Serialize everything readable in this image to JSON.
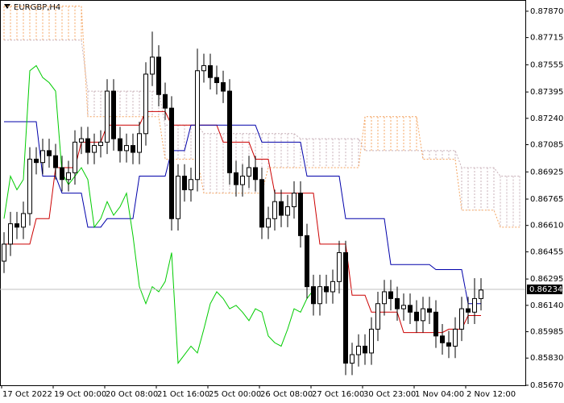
{
  "chart_data": {
    "type": "candlestick",
    "title": "EURGBP,H4",
    "categories": [
      "17 Oct 2022",
      null,
      null,
      null,
      null,
      null,
      null,
      null,
      "19 Oct 00:00",
      null,
      null,
      null,
      null,
      null,
      null,
      null,
      "20 Oct 08:00",
      null,
      null,
      null,
      null,
      null,
      null,
      null,
      "21 Oct 16:00",
      null,
      null,
      null,
      null,
      null,
      null,
      null,
      "25 Oct 00:00",
      null,
      null,
      null,
      null,
      null,
      null,
      null,
      "26 Oct 08:00",
      null,
      null,
      null,
      null,
      null,
      null,
      null,
      "27 Oct 16:00",
      null,
      null,
      null,
      null,
      null,
      null,
      null,
      "30 Oct 23:00",
      null,
      null,
      null,
      null,
      null,
      null,
      null,
      "1 Nov 04:00",
      null,
      null,
      null,
      null,
      null,
      null,
      null,
      "2 Nov 12:00",
      null,
      null,
      null,
      null,
      null,
      null,
      null,
      null
    ],
    "open": [
      0.864,
      0.865,
      0.8662,
      0.866,
      0.8668,
      0.87,
      0.8698,
      0.8705,
      0.8702,
      0.8695,
      0.8688,
      0.8692,
      0.871,
      0.8712,
      0.8704,
      0.8708,
      0.871,
      0.874,
      0.8712,
      0.8705,
      0.8708,
      0.8704,
      0.8715,
      0.875,
      0.876,
      0.8738,
      0.873,
      0.8665,
      0.869,
      0.8682,
      0.8688,
      0.8752,
      0.8755,
      0.8748,
      0.8745,
      0.874,
      0.8692,
      0.8685,
      0.869,
      0.8695,
      0.8688,
      0.866,
      0.8665,
      0.8675,
      0.8667,
      0.8672,
      0.868,
      0.8655,
      0.8625,
      0.8615,
      0.8625,
      0.8622,
      0.8628,
      0.8645,
      0.858,
      0.8585,
      0.859,
      0.8586,
      0.86,
      0.8615,
      0.8622,
      0.8618,
      0.8612,
      0.8614,
      0.861,
      0.8605,
      0.8612,
      0.861,
      0.8596,
      0.8592,
      0.859,
      0.86,
      0.8612,
      0.861,
      0.8618,
      null,
      null,
      null,
      null,
      null,
      null
    ],
    "high": [
      0.8657,
      0.8669,
      0.8669,
      0.8675,
      0.8707,
      0.8707,
      0.8712,
      0.8712,
      0.8709,
      0.8702,
      0.8699,
      0.8717,
      0.8719,
      0.8719,
      0.8715,
      0.8717,
      0.8747,
      0.8747,
      0.8719,
      0.8715,
      0.8715,
      0.8722,
      0.8757,
      0.8775,
      0.8767,
      0.8745,
      0.8737,
      0.8697,
      0.8697,
      0.8695,
      0.8765,
      0.8762,
      0.8762,
      0.8755,
      0.8752,
      0.8747,
      0.8699,
      0.8697,
      0.8702,
      0.8702,
      0.8695,
      0.8672,
      0.8682,
      0.8682,
      0.8679,
      0.8687,
      0.8687,
      0.8662,
      0.8632,
      0.8632,
      0.8632,
      0.8635,
      0.8652,
      0.8652,
      0.8592,
      0.8597,
      0.8597,
      0.8607,
      0.8622,
      0.8629,
      0.8629,
      0.8625,
      0.8621,
      0.8621,
      0.8617,
      0.8619,
      0.8619,
      0.8617,
      0.8603,
      0.8599,
      0.8607,
      0.8619,
      0.8619,
      0.863,
      0.863,
      null,
      null,
      null,
      null,
      null,
      null
    ],
    "low": [
      0.8633,
      0.8643,
      0.8653,
      0.8653,
      0.8661,
      0.8691,
      0.8691,
      0.8695,
      0.8688,
      0.8681,
      0.8681,
      0.8685,
      0.8703,
      0.8697,
      0.8697,
      0.8701,
      0.8703,
      0.8705,
      0.8698,
      0.8698,
      0.8697,
      0.8697,
      0.8708,
      0.8743,
      0.8731,
      0.8723,
      0.8658,
      0.8658,
      0.8675,
      0.8675,
      0.8681,
      0.8745,
      0.8741,
      0.8738,
      0.8733,
      0.8685,
      0.8678,
      0.8678,
      0.8683,
      0.8681,
      0.8653,
      0.8653,
      0.8658,
      0.866,
      0.866,
      0.8665,
      0.8648,
      0.8618,
      0.8608,
      0.8608,
      0.8615,
      0.8615,
      0.8621,
      0.8573,
      0.8573,
      0.8578,
      0.8579,
      0.8579,
      0.8593,
      0.8608,
      0.8611,
      0.8605,
      0.8605,
      0.8603,
      0.8598,
      0.8598,
      0.8603,
      0.8589,
      0.8585,
      0.8583,
      0.8583,
      0.8593,
      0.8603,
      0.8603,
      0.8611,
      null,
      null,
      null,
      null,
      null,
      null
    ],
    "close": [
      0.865,
      0.8662,
      0.866,
      0.8668,
      0.87,
      0.8698,
      0.8705,
      0.8702,
      0.8695,
      0.8688,
      0.8692,
      0.871,
      0.8712,
      0.8704,
      0.8708,
      0.871,
      0.874,
      0.8712,
      0.8705,
      0.8708,
      0.8704,
      0.8715,
      0.875,
      0.876,
      0.8738,
      0.873,
      0.8665,
      0.869,
      0.8682,
      0.8688,
      0.8752,
      0.8755,
      0.8748,
      0.8745,
      0.874,
      0.8692,
      0.8685,
      0.869,
      0.8695,
      0.8688,
      0.866,
      0.8665,
      0.8675,
      0.8667,
      0.8672,
      0.868,
      0.8655,
      0.8625,
      0.8615,
      0.8625,
      0.8622,
      0.8628,
      0.8645,
      0.858,
      0.8585,
      0.859,
      0.8586,
      0.86,
      0.8615,
      0.8622,
      0.8618,
      0.8612,
      0.8614,
      0.861,
      0.8605,
      0.8612,
      0.861,
      0.8596,
      0.8592,
      0.859,
      0.86,
      0.8612,
      0.861,
      0.8618,
      0.8623,
      null,
      null,
      null,
      null,
      null,
      null
    ],
    "up_color": "#ffffff",
    "down_color": "#000000",
    "lines": [
      {
        "color": "#cc0000",
        "values": [
          0.865,
          0.865,
          0.865,
          0.865,
          0.865,
          0.8665,
          0.8665,
          0.8665,
          0.8695,
          0.8695,
          0.8695,
          0.8695,
          0.871,
          0.871,
          0.871,
          0.871,
          0.872,
          0.872,
          0.872,
          0.872,
          0.872,
          0.872,
          0.8728,
          0.8728,
          0.8728,
          0.8728,
          0.872,
          0.872,
          0.872,
          0.872,
          0.872,
          0.872,
          0.872,
          0.872,
          0.871,
          0.871,
          0.871,
          0.871,
          0.871,
          0.87,
          0.87,
          0.87,
          0.868,
          0.868,
          0.868,
          0.868,
          0.868,
          0.868,
          0.868,
          0.865,
          0.865,
          0.865,
          0.865,
          0.865,
          0.862,
          0.862,
          0.862,
          0.861,
          0.861,
          0.861,
          0.861,
          0.861,
          0.8598,
          0.8598,
          0.8598,
          0.8598,
          0.8598,
          0.8598,
          0.8598,
          0.86,
          0.86,
          0.86,
          0.8608,
          0.8608,
          0.8608,
          null,
          null,
          null,
          null,
          null,
          null
        ]
      },
      {
        "color": "#0000aa",
        "values": [
          0.8722,
          0.8722,
          0.8722,
          0.8722,
          0.8722,
          0.8722,
          0.869,
          0.869,
          0.869,
          0.868,
          0.868,
          0.868,
          0.868,
          0.866,
          0.866,
          0.866,
          0.8665,
          0.8665,
          0.8665,
          0.8665,
          0.8665,
          0.869,
          0.869,
          0.869,
          0.869,
          0.869,
          0.8705,
          0.8705,
          0.8705,
          0.872,
          0.872,
          0.872,
          0.872,
          0.872,
          0.872,
          0.872,
          0.872,
          0.872,
          0.872,
          0.872,
          0.871,
          0.871,
          0.871,
          0.871,
          0.871,
          0.871,
          0.871,
          0.869,
          0.869,
          0.869,
          0.869,
          0.869,
          0.869,
          0.8665,
          0.8665,
          0.8665,
          0.8665,
          0.8665,
          0.8665,
          0.8665,
          0.8638,
          0.8638,
          0.8638,
          0.8638,
          0.8638,
          0.8638,
          0.8638,
          0.8635,
          0.8635,
          0.8635,
          0.8635,
          0.8635,
          0.8615,
          0.8615,
          0.8615,
          null,
          null,
          null,
          null,
          null,
          null
        ]
      },
      {
        "color": "#00cc00",
        "values": [
          0.8665,
          0.869,
          0.8682,
          0.8688,
          0.8752,
          0.8755,
          0.8748,
          0.8745,
          0.874,
          0.8692,
          0.8685,
          0.869,
          0.8695,
          0.8688,
          0.866,
          0.8665,
          0.8675,
          0.8667,
          0.8672,
          0.868,
          0.8655,
          0.8625,
          0.8615,
          0.8625,
          0.8622,
          0.8628,
          0.8645,
          0.858,
          0.8585,
          0.859,
          0.8586,
          0.86,
          0.8615,
          0.8622,
          0.8618,
          0.8612,
          0.8614,
          0.861,
          0.8605,
          0.8612,
          0.861,
          0.8596,
          0.8592,
          0.859,
          0.86,
          0.8612,
          0.861,
          0.8618,
          0.8623,
          null,
          null,
          null,
          null,
          null,
          null,
          null,
          null,
          null,
          null,
          null,
          null,
          null,
          null,
          null,
          null,
          null,
          null,
          null,
          null,
          null,
          null,
          null,
          null,
          null,
          null,
          null,
          null,
          null,
          null,
          null,
          null
        ]
      }
    ],
    "cloud": [
      {
        "color": "#c8b0b8",
        "values": [
          0.877,
          0.877,
          0.877,
          0.877,
          0.877,
          0.877,
          0.877,
          0.877,
          0.877,
          0.877,
          0.877,
          0.877,
          0.877,
          0.874,
          0.874,
          0.874,
          0.874,
          0.874,
          0.874,
          0.874,
          0.874,
          0.874,
          0.874,
          0.874,
          0.874,
          0.872,
          0.872,
          0.872,
          0.872,
          0.872,
          0.872,
          0.8715,
          0.8715,
          0.8715,
          0.8715,
          0.8715,
          0.8715,
          0.8715,
          0.8715,
          0.8715,
          0.8715,
          0.8715,
          0.8715,
          0.8715,
          0.8715,
          0.8715,
          0.8712,
          0.8712,
          0.8712,
          0.8712,
          0.8712,
          0.8712,
          0.8712,
          0.8712,
          0.8712,
          0.8712,
          0.8705,
          0.8705,
          0.8705,
          0.8705,
          0.8705,
          0.8705,
          0.8705,
          0.8705,
          0.8705,
          0.8705,
          0.8705,
          0.8705,
          0.8705,
          0.8705,
          0.8705,
          0.8695,
          0.8695,
          0.8695,
          0.8695,
          0.8695,
          0.8695,
          0.869,
          0.869,
          0.869,
          0.869
        ]
      },
      {
        "color": "#f4a460",
        "values": [
          0.879,
          0.879,
          0.879,
          0.879,
          0.879,
          0.879,
          0.879,
          0.879,
          0.879,
          0.879,
          0.879,
          0.879,
          0.879,
          0.8725,
          0.8725,
          0.8725,
          0.8725,
          0.8725,
          0.8725,
          0.8725,
          0.8725,
          0.8725,
          0.8725,
          0.8725,
          0.8725,
          0.87,
          0.87,
          0.87,
          0.87,
          0.87,
          0.87,
          0.868,
          0.868,
          0.868,
          0.868,
          0.868,
          0.868,
          0.868,
          0.868,
          0.868,
          0.868,
          0.8695,
          0.8695,
          0.8695,
          0.8695,
          0.8695,
          0.8695,
          0.8695,
          0.8695,
          0.8695,
          0.8695,
          0.8695,
          0.8695,
          0.8695,
          0.8695,
          0.8695,
          0.8725,
          0.8725,
          0.8725,
          0.8725,
          0.8725,
          0.8725,
          0.8725,
          0.8725,
          0.8725,
          0.87,
          0.87,
          0.87,
          0.87,
          0.87,
          0.87,
          0.867,
          0.867,
          0.867,
          0.867,
          0.867,
          0.867,
          0.866,
          0.866,
          0.866,
          0.866
        ]
      }
    ],
    "last_price": 0.86234,
    "ylim": [
      0.8567,
      0.87936
    ],
    "yticks": [
      {
        "value": 0.8787,
        "label": "0.87870"
      },
      0.87715,
      0.87555,
      0.87395,
      {
        "value": 0.8724,
        "label": "0.87240"
      },
      0.87085,
      0.86925,
      0.86765,
      {
        "value": 0.8661,
        "label": "0.86610"
      },
      0.86455,
      0.86295,
      {
        "value": 0.8614,
        "label": "0.86140"
      },
      0.85985,
      {
        "value": 0.8583,
        "label": "0.85830"
      },
      {
        "value": 0.8567,
        "label": "0.85670"
      }
    ]
  }
}
